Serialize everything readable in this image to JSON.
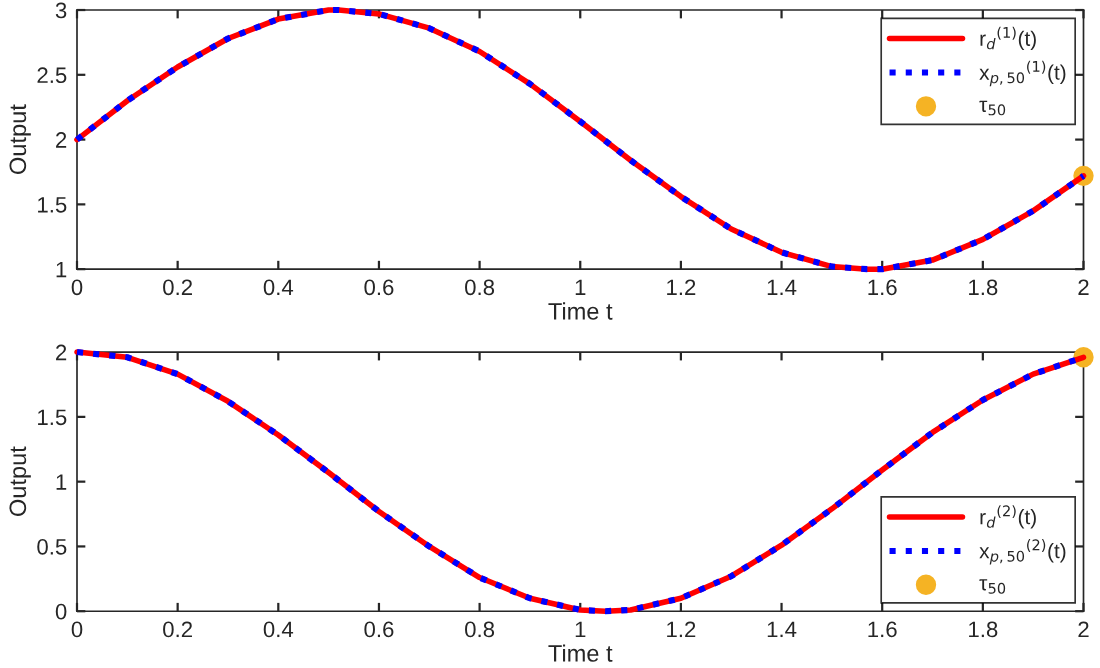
{
  "chart_data": [
    {
      "type": "line",
      "xlabel": "Time t",
      "ylabel": "Output",
      "xlim": [
        0,
        2
      ],
      "ylim": [
        1,
        3
      ],
      "xticks": [
        0,
        0.2,
        0.4,
        0.6,
        0.8,
        1,
        1.2,
        1.4,
        1.6,
        1.8,
        2
      ],
      "yticks": [
        1,
        1.5,
        2,
        2.5,
        3
      ],
      "grid": false,
      "legend": "top right",
      "x": [
        0,
        0.1,
        0.2,
        0.3,
        0.4,
        0.5,
        0.52,
        0.6,
        0.7,
        0.8,
        0.9,
        1.0,
        1.1,
        1.2,
        1.3,
        1.4,
        1.5,
        1.57,
        1.6,
        1.7,
        1.8,
        1.9,
        2.0
      ],
      "series": [
        {
          "name": "r$_{d}$$^{(1)}$(t)",
          "color": "#ff0000",
          "line_style": "solid",
          "marker": "none",
          "values": [
            2.0,
            2.3,
            2.56,
            2.78,
            2.93,
            3.0,
            3.0,
            2.97,
            2.86,
            2.68,
            2.43,
            2.14,
            1.84,
            1.56,
            1.31,
            1.13,
            1.02,
            1.0,
            1.0,
            1.07,
            1.23,
            1.45,
            1.72
          ]
        },
        {
          "name": "x$_{p,50}$$^{(1)}$(t)",
          "color": "#0000ff",
          "line_style": "dotted",
          "marker": "none",
          "values": [
            2.0,
            2.3,
            2.56,
            2.78,
            2.93,
            3.0,
            3.0,
            2.97,
            2.86,
            2.68,
            2.43,
            2.14,
            1.84,
            1.56,
            1.31,
            1.13,
            1.02,
            1.0,
            1.0,
            1.07,
            1.23,
            1.45,
            1.72
          ]
        },
        {
          "name": "τ$_{50}$",
          "type": "scatter",
          "color": "#f5b324",
          "marker": "circle",
          "x": [
            2
          ],
          "values": [
            1.72
          ]
        }
      ]
    },
    {
      "type": "line",
      "xlabel": "Time t",
      "ylabel": "Output",
      "xlim": [
        0,
        2
      ],
      "ylim": [
        0,
        2
      ],
      "xticks": [
        0,
        0.2,
        0.4,
        0.6,
        0.8,
        1,
        1.2,
        1.4,
        1.6,
        1.8,
        2
      ],
      "yticks": [
        0,
        0.5,
        1,
        1.5,
        2
      ],
      "grid": false,
      "legend": "bottom right",
      "x": [
        0,
        0.1,
        0.2,
        0.3,
        0.4,
        0.5,
        0.6,
        0.7,
        0.8,
        0.9,
        1.0,
        1.05,
        1.1,
        1.2,
        1.3,
        1.4,
        1.5,
        1.6,
        1.7,
        1.8,
        1.9,
        2.0
      ],
      "series": [
        {
          "name": "r$_{d}$$^{(2)}$(t)",
          "color": "#ff0000",
          "line_style": "solid",
          "marker": "none",
          "values": [
            2.0,
            1.96,
            1.83,
            1.62,
            1.36,
            1.07,
            0.77,
            0.5,
            0.26,
            0.1,
            0.01,
            0.0,
            0.01,
            0.1,
            0.27,
            0.51,
            0.79,
            1.09,
            1.38,
            1.63,
            1.83,
            1.96
          ]
        },
        {
          "name": "x$_{p,50}$$^{(2)}$(t)",
          "color": "#0000ff",
          "line_style": "dotted",
          "marker": "none",
          "values": [
            2.0,
            1.96,
            1.83,
            1.62,
            1.36,
            1.07,
            0.77,
            0.5,
            0.26,
            0.1,
            0.01,
            0.0,
            0.01,
            0.1,
            0.27,
            0.51,
            0.79,
            1.09,
            1.38,
            1.63,
            1.83,
            1.96
          ]
        },
        {
          "name": "τ$_{50}$",
          "type": "scatter",
          "color": "#f5b324",
          "marker": "circle",
          "x": [
            2
          ],
          "values": [
            1.96
          ]
        }
      ]
    }
  ]
}
